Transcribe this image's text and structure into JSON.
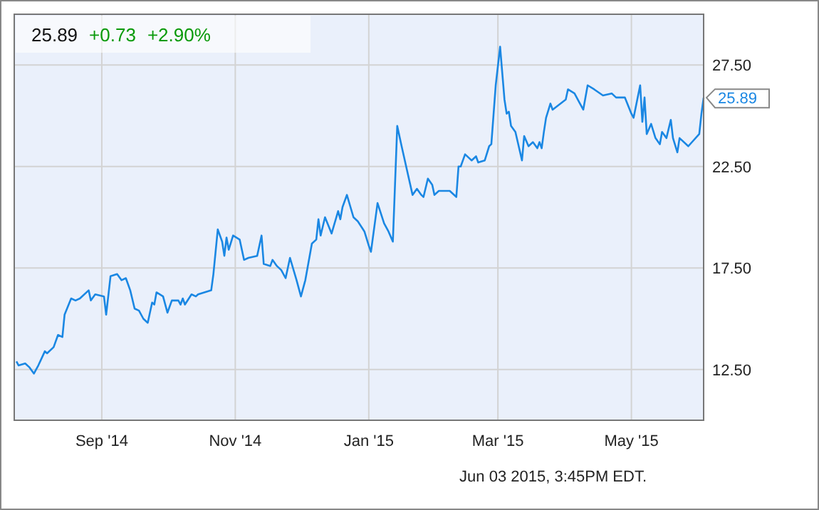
{
  "chart_data": {
    "type": "line",
    "title": "25.89",
    "subtitle": "+0.73  +2.90%",
    "annotations": [
      {
        "text": "25.89",
        "x": "2015-06-03",
        "y": 25.89
      },
      "Jun 03 2015, 3:45PM EDT."
    ],
    "xlim": [
      "2014-07-23",
      "2015-06-03"
    ],
    "ylim": [
      10,
      30
    ],
    "xticks": [
      {
        "value": "2014-09-01",
        "label": "Sep '14"
      },
      {
        "value": "2014-11-01",
        "label": "Nov '14"
      },
      {
        "value": "2015-01-01",
        "label": "Jan '15"
      },
      {
        "value": "2015-03-01",
        "label": "Mar '15"
      },
      {
        "value": "2015-05-01",
        "label": "May '15"
      }
    ],
    "yticks": [
      {
        "value": 12.5,
        "label": "12.50"
      },
      {
        "value": 17.5,
        "label": "17.50"
      },
      {
        "value": 22.5,
        "label": "22.50"
      },
      {
        "value": 27.5,
        "label": "27.50"
      }
    ],
    "grid": true,
    "marker": "none",
    "line_style": "solid",
    "x": [
      "2014-07-24",
      "2014-07-25",
      "2014-07-28",
      "2014-07-30",
      "2014-08-01",
      "2014-08-03",
      "2014-08-06",
      "2014-08-07",
      "2014-08-10",
      "2014-08-12",
      "2014-08-14",
      "2014-08-15",
      "2014-08-18",
      "2014-08-20",
      "2014-08-22",
      "2014-08-26",
      "2014-08-27",
      "2014-08-29",
      "2014-09-02",
      "2014-09-03",
      "2014-09-05",
      "2014-09-08",
      "2014-09-10",
      "2014-09-12",
      "2014-09-14",
      "2014-09-16",
      "2014-09-18",
      "2014-09-20",
      "2014-09-22",
      "2014-09-24",
      "2014-09-25",
      "2014-09-26",
      "2014-09-29",
      "2014-10-01",
      "2014-10-03",
      "2014-10-06",
      "2014-10-07",
      "2014-10-08",
      "2014-10-09",
      "2014-10-12",
      "2014-10-14",
      "2014-10-15",
      "2014-10-21",
      "2014-10-22",
      "2014-10-24",
      "2014-10-26",
      "2014-10-27",
      "2014-10-28",
      "2014-10-29",
      "2014-10-31",
      "2014-11-03",
      "2014-11-05",
      "2014-11-07",
      "2014-11-11",
      "2014-11-13",
      "2014-11-14",
      "2014-11-17",
      "2014-11-18",
      "2014-11-20",
      "2014-11-22",
      "2014-11-24",
      "2014-11-26",
      "2014-11-29",
      "2014-12-01",
      "2014-12-03",
      "2014-12-06",
      "2014-12-08",
      "2014-12-09",
      "2014-12-10",
      "2014-12-12",
      "2014-12-15",
      "2014-12-18",
      "2014-12-19",
      "2014-12-20",
      "2014-12-22",
      "2014-12-25",
      "2014-12-27",
      "2014-12-30",
      "2015-01-01",
      "2015-01-02",
      "2015-01-05",
      "2015-01-08",
      "2015-01-10",
      "2015-01-12",
      "2015-01-14",
      "2015-01-16",
      "2015-01-21",
      "2015-01-23",
      "2015-01-25",
      "2015-01-26",
      "2015-01-28",
      "2015-01-30",
      "2015-01-31",
      "2015-02-02",
      "2015-02-07",
      "2015-02-10",
      "2015-02-11",
      "2015-02-12",
      "2015-02-14",
      "2015-02-16",
      "2015-02-17",
      "2015-02-19",
      "2015-02-20",
      "2015-02-23",
      "2015-02-25",
      "2015-02-26",
      "2015-02-28",
      "2015-03-02",
      "2015-03-04",
      "2015-03-05",
      "2015-03-06",
      "2015-03-07",
      "2015-03-09",
      "2015-03-12",
      "2015-03-13",
      "2015-03-15",
      "2015-03-17",
      "2015-03-19",
      "2015-03-20",
      "2015-03-21",
      "2015-03-22",
      "2015-03-23",
      "2015-03-25",
      "2015-03-26",
      "2015-04-01",
      "2015-04-02",
      "2015-04-05",
      "2015-04-07",
      "2015-04-09",
      "2015-04-11",
      "2015-04-14",
      "2015-04-18",
      "2015-04-22",
      "2015-04-24",
      "2015-04-28",
      "2015-05-01",
      "2015-05-02",
      "2015-05-05",
      "2015-05-06",
      "2015-05-07",
      "2015-05-08",
      "2015-05-10",
      "2015-05-12",
      "2015-05-14",
      "2015-05-15",
      "2015-05-17",
      "2015-05-19",
      "2015-05-20",
      "2015-05-22",
      "2015-05-23",
      "2015-05-27",
      "2015-06-01",
      "2015-06-02",
      "2015-06-03"
    ],
    "series": [
      {
        "color": "#1a87e3",
        "values": [
          12.9,
          12.7,
          12.8,
          12.6,
          12.3,
          12.7,
          13.4,
          13.3,
          13.6,
          14.2,
          14.1,
          15.2,
          16.0,
          15.9,
          16.0,
          16.4,
          15.9,
          16.2,
          16.1,
          15.2,
          17.1,
          17.2,
          16.9,
          17.0,
          16.4,
          15.5,
          15.4,
          15.0,
          14.8,
          15.8,
          15.7,
          16.3,
          16.1,
          15.3,
          15.9,
          15.9,
          15.7,
          16.0,
          15.7,
          16.2,
          16.1,
          16.2,
          16.4,
          17.2,
          19.4,
          18.8,
          18.1,
          19.0,
          18.4,
          19.1,
          18.9,
          17.9,
          18.0,
          18.1,
          19.1,
          17.7,
          17.6,
          17.9,
          17.6,
          17.4,
          17.0,
          18.0,
          16.9,
          16.1,
          16.9,
          18.7,
          18.9,
          19.9,
          19.1,
          20.0,
          19.2,
          20.3,
          19.9,
          20.5,
          21.1,
          20.0,
          19.8,
          19.3,
          18.6,
          18.3,
          20.7,
          19.7,
          19.3,
          18.8,
          24.5,
          23.5,
          21.1,
          21.4,
          21.1,
          21.0,
          21.9,
          21.6,
          21.1,
          21.3,
          21.3,
          21.0,
          22.5,
          22.5,
          23.1,
          22.9,
          22.8,
          23.0,
          22.7,
          22.8,
          23.5,
          23.6,
          26.5,
          28.4,
          25.8,
          25.1,
          25.2,
          24.5,
          24.2,
          22.8,
          24.0,
          23.5,
          23.7,
          23.4,
          23.7,
          23.4,
          24.2,
          24.9,
          25.6,
          25.3,
          25.8,
          26.3,
          26.1,
          25.7,
          25.3,
          26.5,
          26.3,
          26.0,
          26.1,
          25.9,
          25.9,
          25.1,
          24.9,
          26.5,
          24.7,
          25.9,
          24.1,
          24.6,
          23.9,
          23.6,
          24.2,
          23.9,
          24.8,
          23.9,
          23.2,
          23.9,
          23.5,
          24.1,
          25.1,
          25.89
        ]
      }
    ]
  }
}
